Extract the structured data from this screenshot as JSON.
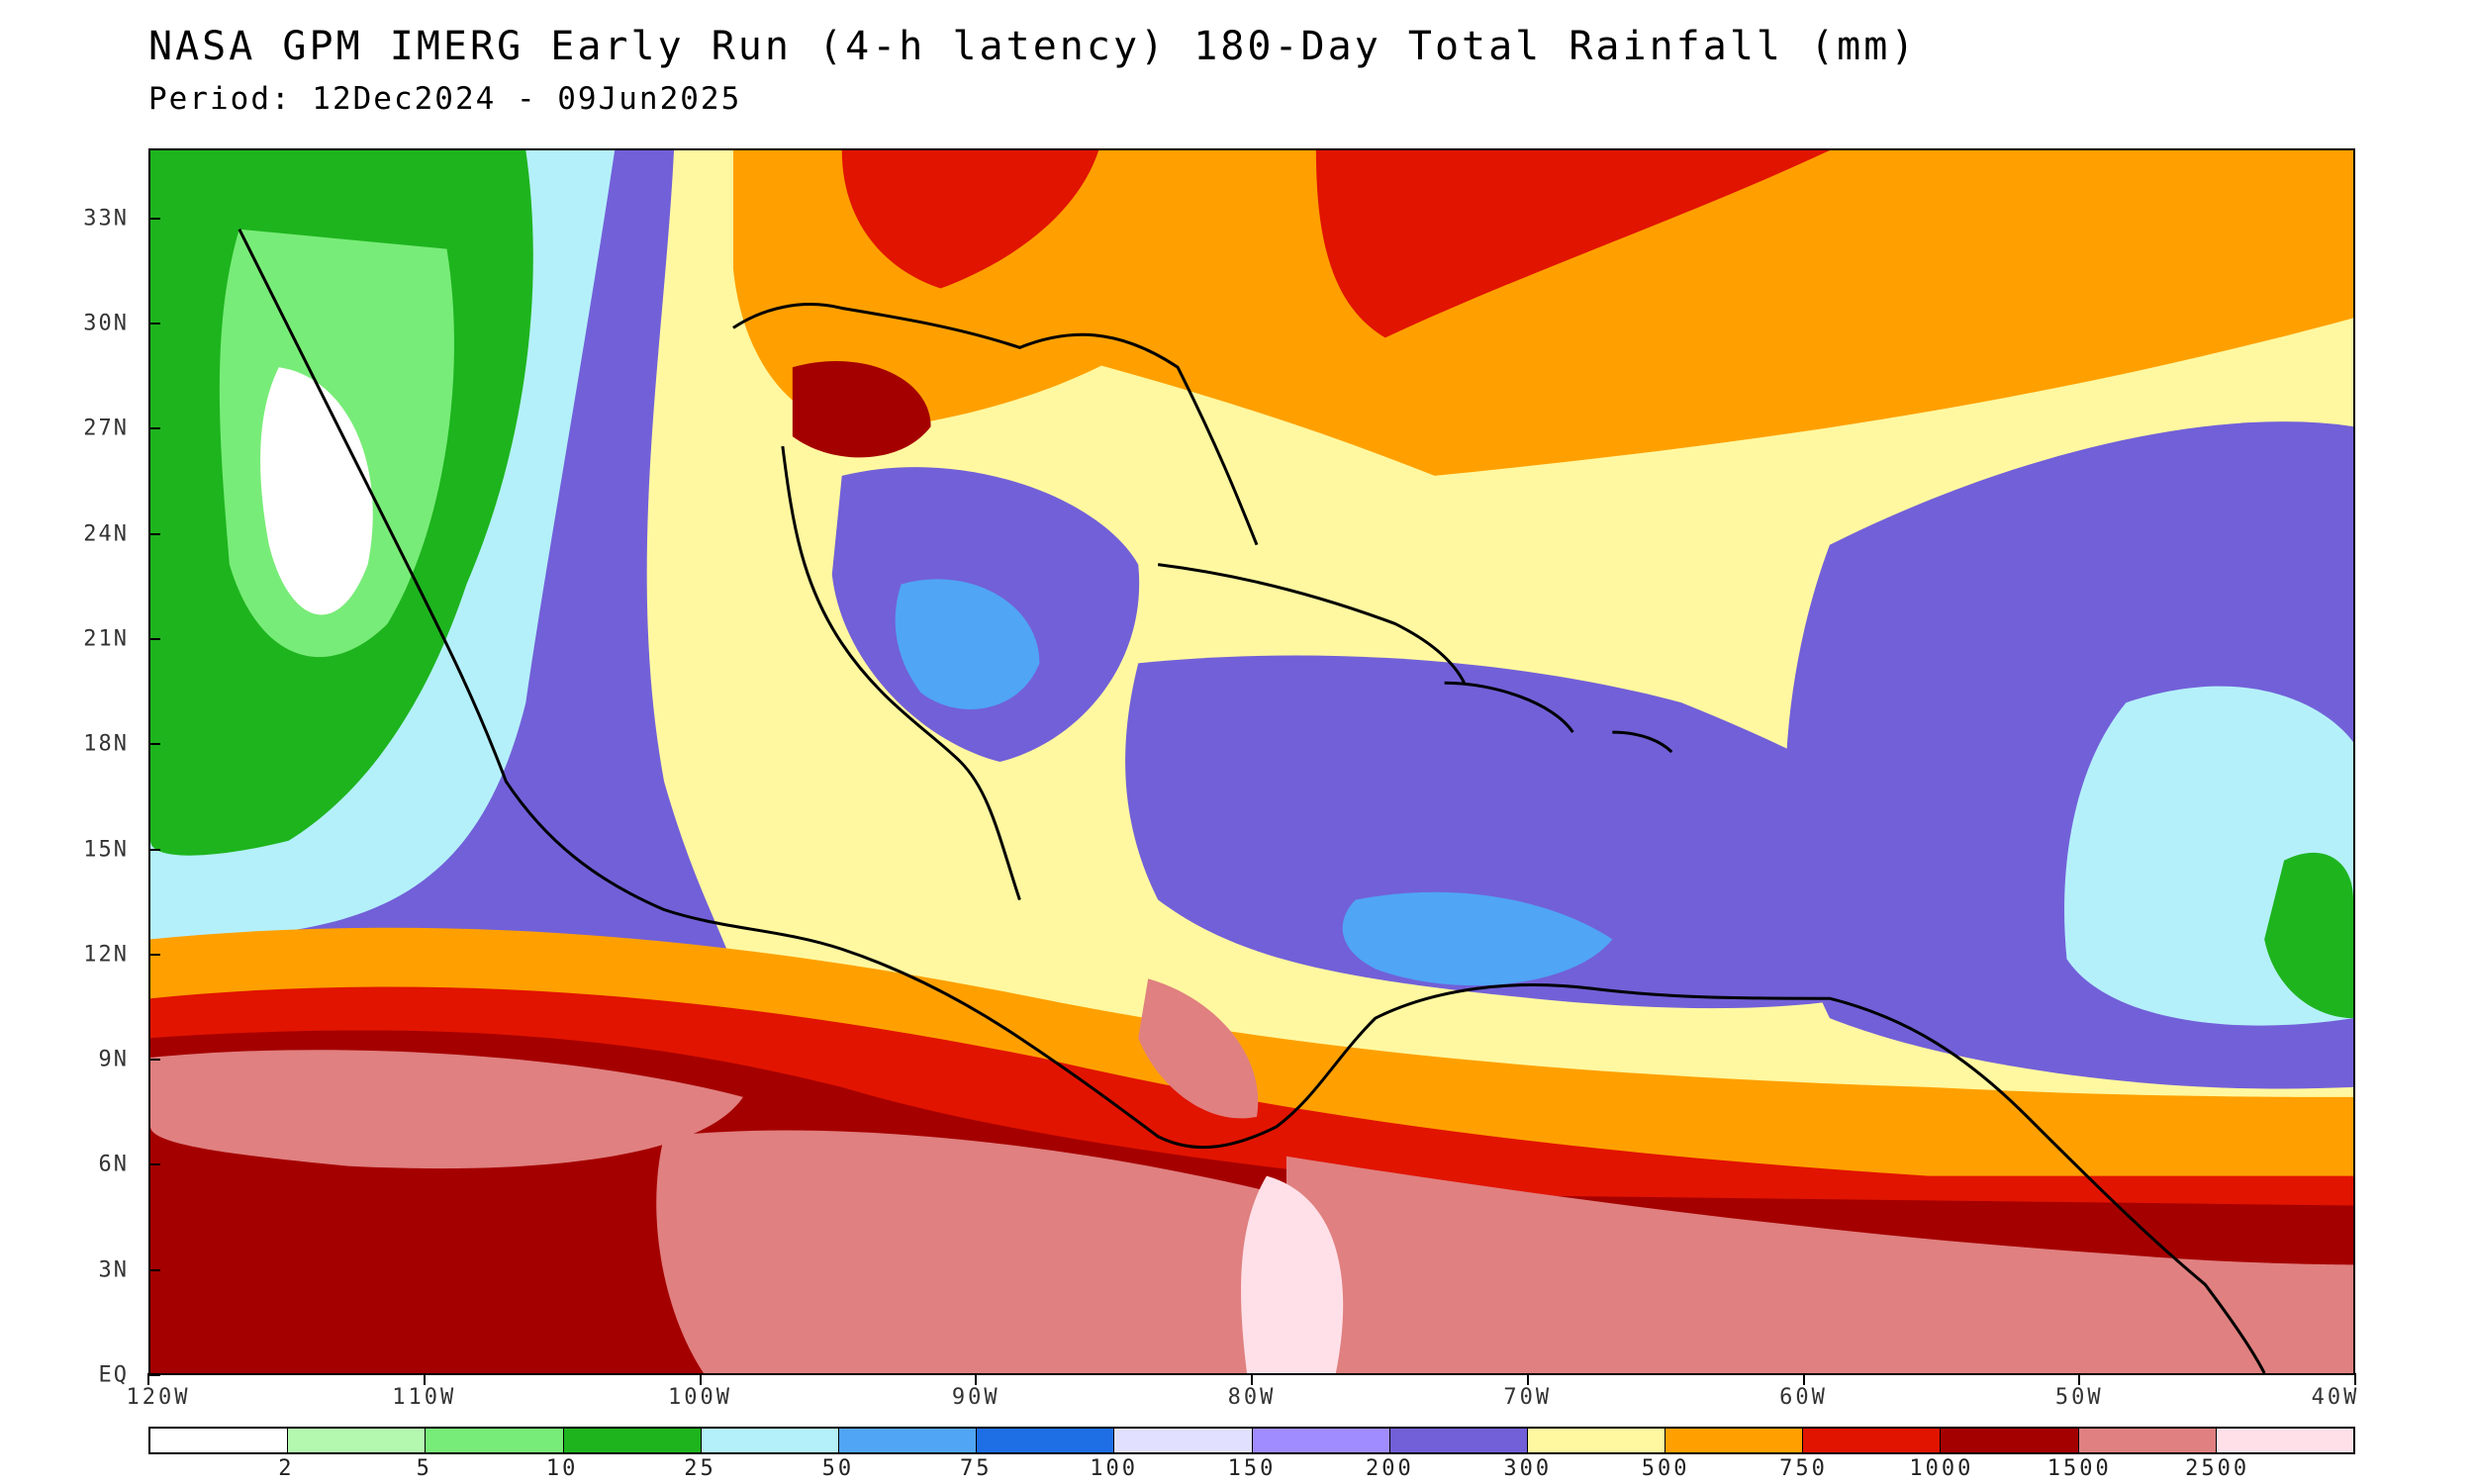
{
  "title": "NASA GPM IMERG Early Run (4-h latency) 180-Day Total Rainfall (mm)",
  "subtitle": "Period: 12Dec2024 - 09Jun2025",
  "map": {
    "lon_range": [
      -120,
      -40
    ],
    "lat_range": [
      0,
      35
    ],
    "lat_ticks": [
      "33N",
      "30N",
      "27N",
      "24N",
      "21N",
      "18N",
      "15N",
      "12N",
      "9N",
      "6N",
      "3N",
      "EQ"
    ],
    "lat_values": [
      33,
      30,
      27,
      24,
      21,
      18,
      15,
      12,
      9,
      6,
      3,
      0
    ],
    "lon_ticks": [
      "120W",
      "110W",
      "100W",
      "90W",
      "80W",
      "70W",
      "60W",
      "50W",
      "40W"
    ],
    "lon_values": [
      -120,
      -110,
      -100,
      -90,
      -80,
      -70,
      -60,
      -50,
      -40
    ],
    "border_color": "#000000"
  },
  "legend": {
    "labels": [
      "2",
      "5",
      "10",
      "25",
      "50",
      "75",
      "100",
      "150",
      "200",
      "300",
      "500",
      "750",
      "1000",
      "1500",
      "2500"
    ],
    "colors": [
      "#ffffff",
      "#b4f8b0",
      "#78ec78",
      "#1eb41e",
      "#b4f0fa",
      "#50a5f5",
      "#1e6ee6",
      "#e1e1ff",
      "#a08cff",
      "#7260d8",
      "#fff8a0",
      "#ffa000",
      "#e11400",
      "#a50000",
      "#e08080",
      "#ffe0e8"
    ]
  },
  "regions": {
    "dry_west": "#1eb41e",
    "desert_core": "#ffffff",
    "sea_blue": "#b4f0fa",
    "moderate_purple": "#7260d8",
    "light_purple": "#a08cff",
    "yellow": "#fff8a0",
    "orange": "#ffa000",
    "red": "#e11400",
    "darkred": "#a50000",
    "pink": "#e08080",
    "lightpink": "#ffe0e8"
  }
}
